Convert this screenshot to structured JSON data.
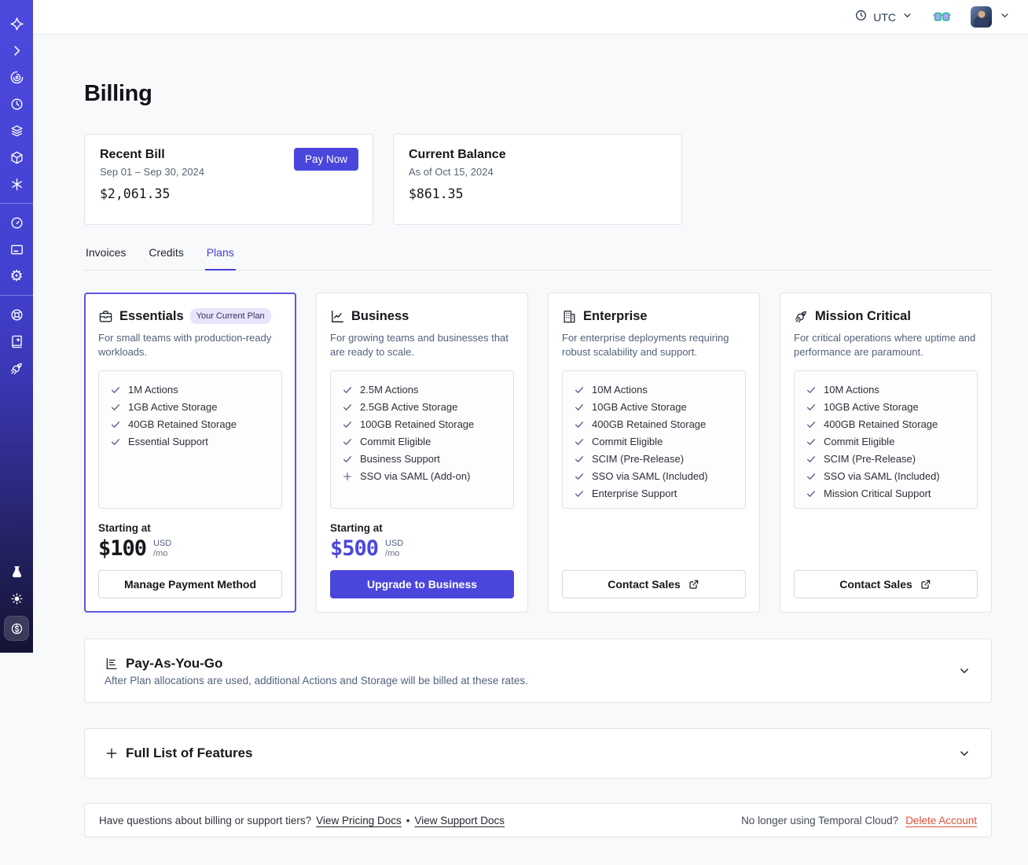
{
  "topbar": {
    "timezone": "UTC"
  },
  "sidebar": {
    "groups": [
      {
        "items": [
          {
            "name": "nav-temporal-logo",
            "icon": "temporal-logo-icon"
          },
          {
            "name": "nav-expand",
            "icon": "chevron-right-icon"
          },
          {
            "name": "nav-workflows",
            "icon": "workflows-spiral-icon"
          },
          {
            "name": "nav-schedules",
            "icon": "schedules-clock-icon"
          },
          {
            "name": "nav-namespaces",
            "icon": "namespaces-layers-icon"
          },
          {
            "name": "nav-deployments",
            "icon": "deployments-cube-icon"
          },
          {
            "name": "nav-nexus",
            "icon": "nexus-asterisk-icon"
          }
        ]
      },
      {
        "items": [
          {
            "name": "nav-usage",
            "icon": "usage-gauge-icon"
          },
          {
            "name": "nav-billing",
            "icon": "billing-card-icon"
          },
          {
            "name": "nav-settings",
            "icon": "settings-gear-icon"
          }
        ]
      },
      {
        "items": [
          {
            "name": "nav-support",
            "icon": "support-lifebuoy-icon"
          },
          {
            "name": "nav-docs",
            "icon": "docs-book-icon"
          },
          {
            "name": "nav-getting-started",
            "icon": "rocket-icon"
          }
        ]
      }
    ],
    "bottom": {
      "items": [
        {
          "name": "nav-labs",
          "icon": "labs-flask-icon"
        },
        {
          "name": "nav-theme",
          "icon": "theme-sun-icon"
        },
        {
          "name": "nav-billing-active",
          "icon": "dollar-coin-icon",
          "active": true
        }
      ]
    }
  },
  "page": {
    "title": "Billing"
  },
  "summary": {
    "recent_bill": {
      "title": "Recent Bill",
      "period": "Sep 01 – Sep 30, 2024",
      "amount": "$2,061.35",
      "action": "Pay Now"
    },
    "current_balance": {
      "title": "Current Balance",
      "as_of": "As of Oct 15, 2024",
      "amount": "$861.35"
    }
  },
  "tabs": {
    "items": [
      {
        "label": "Invoices",
        "active": false
      },
      {
        "label": "Credits",
        "active": false
      },
      {
        "label": "Plans",
        "active": true
      }
    ]
  },
  "plans": {
    "starting_at_label": "Starting at",
    "currency": "USD",
    "period": "/mo",
    "items": [
      {
        "id": "essentials",
        "name": "Essentials",
        "icon": "briefcase-icon",
        "badge": "Your Current Plan",
        "highlighted": true,
        "description": "For small teams with production-ready workloads.",
        "features": [
          {
            "marker": "check",
            "label": "1M Actions"
          },
          {
            "marker": "check",
            "label": "1GB Active Storage"
          },
          {
            "marker": "check",
            "label": "40GB Retained Storage"
          },
          {
            "marker": "check",
            "label": "Essential Support"
          }
        ],
        "price": "$100",
        "price_accent": false,
        "button": {
          "label": "Manage Payment Method",
          "style": "outline",
          "external": false
        }
      },
      {
        "id": "business",
        "name": "Business",
        "icon": "chart-trend-icon",
        "badge": null,
        "highlighted": false,
        "description": "For growing teams and businesses that are ready to scale.",
        "features": [
          {
            "marker": "check",
            "label": "2.5M Actions"
          },
          {
            "marker": "check",
            "label": "2.5GB Active Storage"
          },
          {
            "marker": "check",
            "label": "100GB Retained Storage"
          },
          {
            "marker": "check",
            "label": "Commit Eligible"
          },
          {
            "marker": "check",
            "label": "Business Support"
          },
          {
            "marker": "plus",
            "label": "SSO via SAML (Add-on)"
          }
        ],
        "price": "$500",
        "price_accent": true,
        "button": {
          "label": "Upgrade to Business",
          "style": "filled",
          "external": false
        }
      },
      {
        "id": "enterprise",
        "name": "Enterprise",
        "icon": "building-icon",
        "badge": null,
        "highlighted": false,
        "description": "For enterprise deployments requiring robust scalability and support.",
        "features": [
          {
            "marker": "check",
            "label": "10M Actions"
          },
          {
            "marker": "check",
            "label": "10GB Active Storage"
          },
          {
            "marker": "check",
            "label": "400GB Retained Storage"
          },
          {
            "marker": "check",
            "label": "Commit Eligible"
          },
          {
            "marker": "check",
            "label": "SCIM (Pre-Release)"
          },
          {
            "marker": "check",
            "label": "SSO via SAML (Included)"
          },
          {
            "marker": "check",
            "label": "Enterprise Support"
          }
        ],
        "price": null,
        "price_accent": false,
        "button": {
          "label": "Contact Sales",
          "style": "outline",
          "external": true
        }
      },
      {
        "id": "mission-critical",
        "name": "Mission Critical",
        "icon": "rocket-icon",
        "badge": null,
        "highlighted": false,
        "description": "For critical operations where uptime and performance are paramount.",
        "features": [
          {
            "marker": "check",
            "label": "10M Actions"
          },
          {
            "marker": "check",
            "label": "10GB Active Storage"
          },
          {
            "marker": "check",
            "label": "400GB Retained Storage"
          },
          {
            "marker": "check",
            "label": "Commit Eligible"
          },
          {
            "marker": "check",
            "label": "SCIM (Pre-Release)"
          },
          {
            "marker": "check",
            "label": "SSO via SAML (Included)"
          },
          {
            "marker": "check",
            "label": "Mission Critical Support"
          }
        ],
        "price": null,
        "price_accent": false,
        "button": {
          "label": "Contact Sales",
          "style": "outline",
          "external": true
        }
      }
    ]
  },
  "pay_as_you_go": {
    "title": "Pay-As-You-Go",
    "description": "After Plan allocations are used, additional Actions and Storage will be billed at these rates.",
    "icon": "payg-chart-icon"
  },
  "full_features": {
    "title": "Full List of Features",
    "icon": "plus-icon"
  },
  "footer": {
    "question": "Have questions about billing or support tiers?",
    "pricing_link": "View Pricing Docs",
    "separator": "•",
    "support_link": "View Support Docs",
    "delete_prompt": "No longer using Temporal Cloud?",
    "delete_link": "Delete Account"
  },
  "colors": {
    "accent": "#4a46dc",
    "active_tab": "#443fd6",
    "sidebar_top": "#4c49dd",
    "sidebar_bottom": "#141334",
    "badge_bg": "#e8e4fb",
    "danger": "#dd5136",
    "page_bg": "#f8f9fb"
  }
}
